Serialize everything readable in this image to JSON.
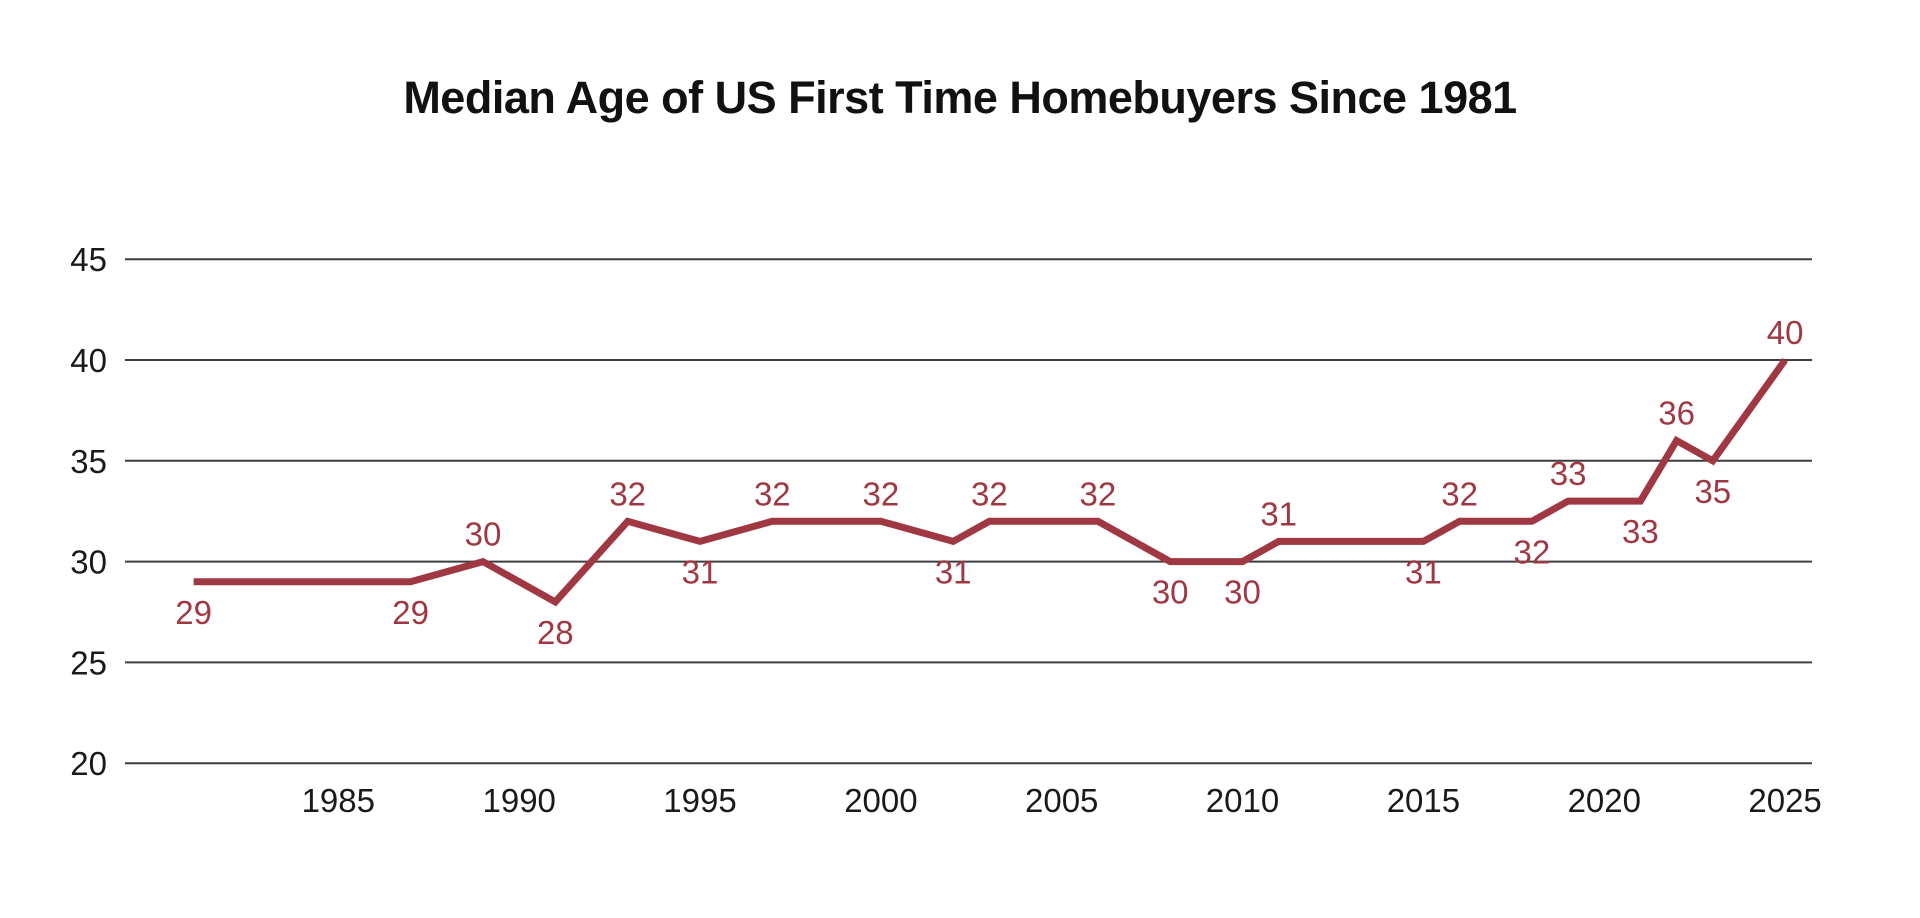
{
  "chart_data": {
    "type": "line",
    "title": "Median Age of US First Time Homebuyers Since 1981",
    "xlabel": "",
    "ylabel": "",
    "x_tick_labels": [
      1985,
      1990,
      1995,
      2000,
      2005,
      2010,
      2015,
      2020,
      2025
    ],
    "y_tick_labels": [
      45,
      40,
      35,
      30,
      25,
      20
    ],
    "xlim": [
      1981,
      2025
    ],
    "ylim": [
      20,
      45
    ],
    "grid": "horizontal-only",
    "legend_position": "none",
    "colors": {
      "line": "#A03843",
      "data_label": "#A03843",
      "gridline": "#3D3D3D",
      "axis_text": "#1A1A1A",
      "title_text": "#111111",
      "background": "#FFFFFF"
    },
    "series": [
      {
        "name": "Median age of US first-time homebuyers",
        "points": [
          {
            "year": 1981,
            "value": 29,
            "label": "29",
            "label_position": "below"
          },
          {
            "year": 1987,
            "value": 29,
            "label": "29",
            "label_position": "below"
          },
          {
            "year": 1989,
            "value": 30,
            "label": "30",
            "label_position": "above"
          },
          {
            "year": 1991,
            "value": 28,
            "label": "28",
            "label_position": "below"
          },
          {
            "year": 1993,
            "value": 32,
            "label": "32",
            "label_position": "above"
          },
          {
            "year": 1995,
            "value": 31,
            "label": "31",
            "label_position": "below"
          },
          {
            "year": 1997,
            "value": 32,
            "label": "32",
            "label_position": "above"
          },
          {
            "year": 2000,
            "value": 32,
            "label": "32",
            "label_position": "above"
          },
          {
            "year": 2002,
            "value": 31,
            "label": "31",
            "label_position": "below"
          },
          {
            "year": 2003,
            "value": 32,
            "label": "32",
            "label_position": "above"
          },
          {
            "year": 2006,
            "value": 32,
            "label": "32",
            "label_position": "above"
          },
          {
            "year": 2008,
            "value": 30,
            "label": "30",
            "label_position": "below"
          },
          {
            "year": 2010,
            "value": 30,
            "label": "30",
            "label_position": "below"
          },
          {
            "year": 2011,
            "value": 31,
            "label": "31",
            "label_position": "above"
          },
          {
            "year": 2015,
            "value": 31,
            "label": "31",
            "label_position": "below"
          },
          {
            "year": 2016,
            "value": 32,
            "label": "32",
            "label_position": "above"
          },
          {
            "year": 2018,
            "value": 32,
            "label": "32",
            "label_position": "below"
          },
          {
            "year": 2019,
            "value": 33,
            "label": "33",
            "label_position": "above"
          },
          {
            "year": 2021,
            "value": 33,
            "label": "33",
            "label_position": "below"
          },
          {
            "year": 2022,
            "value": 36,
            "label": "36",
            "label_position": "above"
          },
          {
            "year": 2023,
            "value": 35,
            "label": "35",
            "label_position": "below"
          },
          {
            "year": 2025,
            "value": 40,
            "label": "40",
            "label_position": "above"
          }
        ]
      }
    ]
  }
}
